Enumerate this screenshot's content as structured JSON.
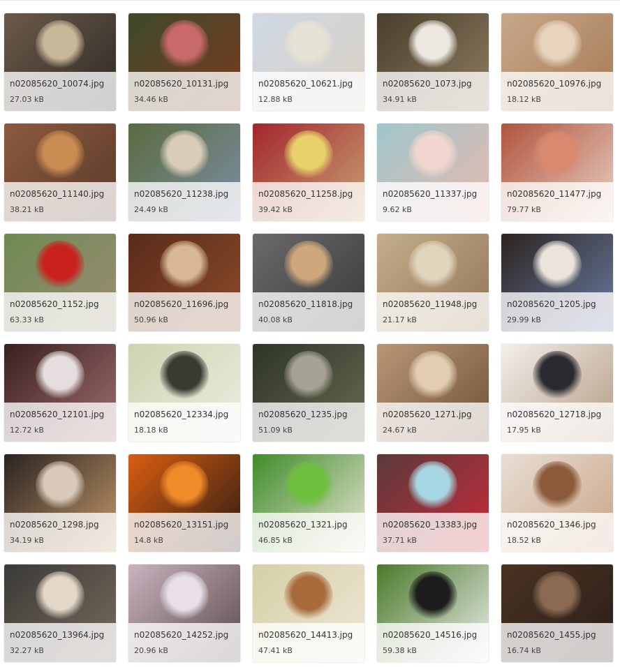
{
  "gallery": {
    "items": [
      {
        "name": "n02085620_10074.jpg",
        "size": "27.03 kB",
        "colors": [
          "#6b5a4a",
          "#c9b79a",
          "#2e2a25"
        ]
      },
      {
        "name": "n02085620_10131.jpg",
        "size": "34.46 kB",
        "colors": [
          "#3d4a2a",
          "#c96a6a",
          "#7a3a1f"
        ]
      },
      {
        "name": "n02085620_10621.jpg",
        "size": "12.88 kB",
        "colors": [
          "#cfd9e3",
          "#e7e2d6",
          "#d9cfc3"
        ]
      },
      {
        "name": "n02085620_1073.jpg",
        "size": "34.91 kB",
        "colors": [
          "#4a3f2c",
          "#ece8df",
          "#8e7d62"
        ]
      },
      {
        "name": "n02085620_10976.jpg",
        "size": "18.12 kB",
        "colors": [
          "#c6a88a",
          "#e8d4bd",
          "#a67a55"
        ]
      },
      {
        "name": "n02085620_11140.jpg",
        "size": "38.21 kB",
        "colors": [
          "#8b5a3e",
          "#c98c52",
          "#5a3a2a"
        ]
      },
      {
        "name": "n02085620_11238.jpg",
        "size": "24.49 kB",
        "colors": [
          "#5a6b3f",
          "#d9cdb8",
          "#7d8fa6"
        ]
      },
      {
        "name": "n02085620_11258.jpg",
        "size": "39.42 kB",
        "colors": [
          "#a3252c",
          "#e8d06a",
          "#c9a477"
        ]
      },
      {
        "name": "n02085620_11337.jpg",
        "size": "9.62 kB",
        "colors": [
          "#9ec7cc",
          "#f0d6cf",
          "#e9b8ad"
        ]
      },
      {
        "name": "n02085620_11477.jpg",
        "size": "79.77 kB",
        "colors": [
          "#b0543d",
          "#d98a6e",
          "#e9d2c4"
        ]
      },
      {
        "name": "n02085620_1152.jpg",
        "size": "63.33 kB",
        "colors": [
          "#6e8a52",
          "#c9211e",
          "#9b8c75"
        ]
      },
      {
        "name": "n02085620_11696.jpg",
        "size": "50.96 kB",
        "colors": [
          "#5a2a1a",
          "#d8b894",
          "#8c4c2a"
        ]
      },
      {
        "name": "n02085620_11818.jpg",
        "size": "40.08 kB",
        "colors": [
          "#6a6a6a",
          "#cfa77c",
          "#3a3a3a"
        ]
      },
      {
        "name": "n02085620_11948.jpg",
        "size": "21.17 kB",
        "colors": [
          "#c5ae8c",
          "#e2d5bd",
          "#8f7556"
        ]
      },
      {
        "name": "n02085620_1205.jpg",
        "size": "29.99 kB",
        "colors": [
          "#2c2420",
          "#eae4dc",
          "#6a7ca3"
        ]
      },
      {
        "name": "n02085620_12101.jpg",
        "size": "12.72 kB",
        "colors": [
          "#3a1f1f",
          "#e6dede",
          "#a07070"
        ]
      },
      {
        "name": "n02085620_12334.jpg",
        "size": "18.18 kB",
        "colors": [
          "#cfd3b0",
          "#3a3a32",
          "#e9efe2"
        ]
      },
      {
        "name": "n02085620_1235.jpg",
        "size": "51.09 kB",
        "colors": [
          "#2d3525",
          "#a7a394",
          "#6b6a55"
        ]
      },
      {
        "name": "n02085620_1271.jpg",
        "size": "24.67 kB",
        "colors": [
          "#b89776",
          "#e2cdb3",
          "#6e5138"
        ]
      },
      {
        "name": "n02085620_12718.jpg",
        "size": "17.95 kB",
        "colors": [
          "#f2efea",
          "#2a2a30",
          "#b39a82"
        ]
      },
      {
        "name": "n02085620_1298.jpg",
        "size": "34.19 kB",
        "colors": [
          "#2a2220",
          "#d9c9b8",
          "#c49a6b"
        ]
      },
      {
        "name": "n02085620_13151.jpg",
        "size": "14.8 kB",
        "colors": [
          "#d95e12",
          "#f08b2a",
          "#2a1a12"
        ]
      },
      {
        "name": "n02085620_1321.jpg",
        "size": "46.85 kB",
        "colors": [
          "#3f8c2a",
          "#6fbf3f",
          "#ece5d8"
        ]
      },
      {
        "name": "n02085620_13383.jpg",
        "size": "37.71 kB",
        "colors": [
          "#5a3a3a",
          "#a7d6e3",
          "#c92a3a"
        ]
      },
      {
        "name": "n02085620_1346.jpg",
        "size": "18.52 kB",
        "colors": [
          "#e8ded4",
          "#8a5a3a",
          "#c9a485"
        ]
      },
      {
        "name": "n02085620_13964.jpg",
        "size": "32.27 kB",
        "colors": [
          "#3a3a38",
          "#e2d7c8",
          "#7a6b5a"
        ]
      },
      {
        "name": "n02085620_14252.jpg",
        "size": "20.96 kB",
        "colors": [
          "#c9b3bf",
          "#e8dfe8",
          "#5a4a4a"
        ]
      },
      {
        "name": "n02085620_14413.jpg",
        "size": "47.41 kB",
        "colors": [
          "#d4d0a6",
          "#a86a3a",
          "#f0e6d8"
        ]
      },
      {
        "name": "n02085620_14516.jpg",
        "size": "59.38 kB",
        "colors": [
          "#4a7a2a",
          "#1c1c1c",
          "#eeeeee"
        ]
      },
      {
        "name": "n02085620_1455.jpg",
        "size": "16.74 kB",
        "colors": [
          "#4a3322",
          "#8a6a52",
          "#2a1e18"
        ]
      }
    ]
  }
}
